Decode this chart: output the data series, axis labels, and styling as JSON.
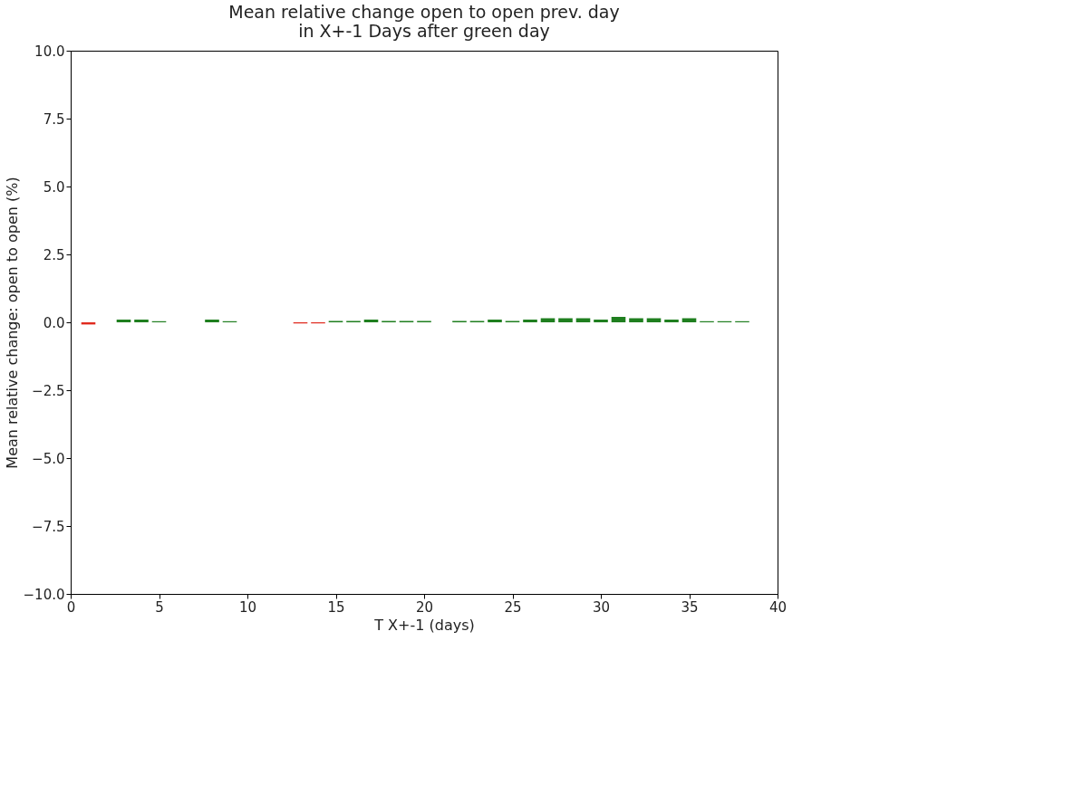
{
  "chart_data": {
    "type": "bar",
    "title": [
      "Mean relative change open to open prev. day",
      "in X+-1 Days after green day"
    ],
    "xlabel": "T X+-1 (days)",
    "ylabel": "Mean relative change: open to open (%)",
    "x": [
      1,
      3,
      4,
      5,
      8,
      9,
      13,
      14,
      15,
      16,
      17,
      18,
      19,
      20,
      22,
      23,
      24,
      25,
      26,
      27,
      28,
      29,
      30,
      31,
      32,
      33,
      34,
      35,
      36,
      37,
      38
    ],
    "values": [
      -0.08,
      0.1,
      0.1,
      0.04,
      0.1,
      0.04,
      -0.04,
      -0.04,
      0.05,
      0.05,
      0.1,
      0.05,
      0.05,
      0.05,
      0.05,
      0.05,
      0.1,
      0.05,
      0.1,
      0.15,
      0.15,
      0.15,
      0.1,
      0.2,
      0.15,
      0.15,
      0.1,
      0.15,
      0.04,
      0.04,
      0.04
    ],
    "colors": [
      "#e02a1e",
      "#1f7f1f",
      "#1f7f1f",
      "#1f7f1f",
      "#1f7f1f",
      "#1f7f1f",
      "#e02a1e",
      "#e02a1e",
      "#1f7f1f",
      "#1f7f1f",
      "#1f7f1f",
      "#1f7f1f",
      "#1f7f1f",
      "#1f7f1f",
      "#1f7f1f",
      "#1f7f1f",
      "#1f7f1f",
      "#1f7f1f",
      "#1f7f1f",
      "#1f7f1f",
      "#1f7f1f",
      "#1f7f1f",
      "#1f7f1f",
      "#1f7f1f",
      "#1f7f1f",
      "#1f7f1f",
      "#1f7f1f",
      "#1f7f1f",
      "#1f7f1f",
      "#1f7f1f",
      "#1f7f1f"
    ],
    "xlim": [
      0,
      40
    ],
    "xticks": [
      0,
      5,
      10,
      15,
      20,
      25,
      30,
      35,
      40
    ],
    "ylim": [
      -10,
      10
    ],
    "yticks": [
      {
        "value": -10,
        "label": "−10.0"
      },
      {
        "value": -7.5,
        "label": "−7.5"
      },
      {
        "value": -5,
        "label": "−5.0"
      },
      {
        "value": -2.5,
        "label": "−2.5"
      },
      {
        "value": 0,
        "label": "0.0"
      },
      {
        "value": 2.5,
        "label": "2.5"
      },
      {
        "value": 5,
        "label": "5.0"
      },
      {
        "value": 7.5,
        "label": "7.5"
      },
      {
        "value": 10,
        "label": "10.0"
      }
    ],
    "grid": false
  }
}
